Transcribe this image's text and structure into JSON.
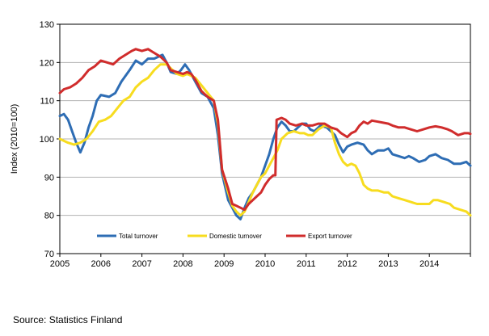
{
  "source": "Source:  Statistics Finland",
  "chart_data": {
    "type": "line",
    "title": "",
    "xlabel": "",
    "ylabel": "Index (2010=100)",
    "x_ticks": [
      "2005",
      "2006",
      "2007",
      "2008",
      "2009",
      "2010",
      "2011",
      "2012",
      "2013",
      "2014"
    ],
    "y_ticks": [
      "70",
      "80",
      "90",
      "100",
      "110",
      "120",
      "130"
    ],
    "xlim": [
      2005,
      2015
    ],
    "ylim": [
      70,
      130
    ],
    "grid": "horizontal",
    "legend_position": "inside-bottom-left",
    "series": [
      {
        "name": "Total turnover",
        "color": "#2e6db4",
        "points": [
          [
            2005.0,
            106
          ],
          [
            2005.1,
            106.5
          ],
          [
            2005.2,
            105
          ],
          [
            2005.3,
            102
          ],
          [
            2005.4,
            99
          ],
          [
            2005.5,
            96.5
          ],
          [
            2005.6,
            99
          ],
          [
            2005.7,
            103
          ],
          [
            2005.8,
            106
          ],
          [
            2005.9,
            110
          ],
          [
            2006.0,
            111.5
          ],
          [
            2006.2,
            111
          ],
          [
            2006.35,
            112
          ],
          [
            2006.5,
            115
          ],
          [
            2006.7,
            118
          ],
          [
            2006.85,
            120.5
          ],
          [
            2007.0,
            119.5
          ],
          [
            2007.15,
            121
          ],
          [
            2007.3,
            121
          ],
          [
            2007.5,
            122
          ],
          [
            2007.6,
            120
          ],
          [
            2007.7,
            117.5
          ],
          [
            2007.85,
            117
          ],
          [
            2007.95,
            118
          ],
          [
            2008.05,
            119.5
          ],
          [
            2008.15,
            118
          ],
          [
            2008.3,
            115
          ],
          [
            2008.45,
            112
          ],
          [
            2008.6,
            111
          ],
          [
            2008.75,
            108
          ],
          [
            2008.85,
            101
          ],
          [
            2008.95,
            91
          ],
          [
            2009.1,
            84
          ],
          [
            2009.2,
            82
          ],
          [
            2009.3,
            80
          ],
          [
            2009.4,
            79
          ],
          [
            2009.5,
            82
          ],
          [
            2009.6,
            84.5
          ],
          [
            2009.7,
            86
          ],
          [
            2009.8,
            88
          ],
          [
            2009.9,
            90
          ],
          [
            2010.0,
            93
          ],
          [
            2010.1,
            96
          ],
          [
            2010.2,
            100
          ],
          [
            2010.3,
            103
          ],
          [
            2010.4,
            104.5
          ],
          [
            2010.5,
            103.5
          ],
          [
            2010.6,
            102
          ],
          [
            2010.7,
            102
          ],
          [
            2010.8,
            103
          ],
          [
            2010.9,
            104
          ],
          [
            2011.0,
            104
          ],
          [
            2011.1,
            102.5
          ],
          [
            2011.2,
            102
          ],
          [
            2011.35,
            103.5
          ],
          [
            2011.5,
            103
          ],
          [
            2011.6,
            102
          ],
          [
            2011.7,
            101
          ],
          [
            2011.8,
            98.5
          ],
          [
            2011.9,
            96.5
          ],
          [
            2012.0,
            98
          ],
          [
            2012.1,
            98.5
          ],
          [
            2012.25,
            99
          ],
          [
            2012.4,
            98.5
          ],
          [
            2012.5,
            97
          ],
          [
            2012.6,
            96
          ],
          [
            2012.75,
            97
          ],
          [
            2012.9,
            97
          ],
          [
            2013.0,
            97.5
          ],
          [
            2013.1,
            96
          ],
          [
            2013.25,
            95.5
          ],
          [
            2013.4,
            95
          ],
          [
            2013.5,
            95.5
          ],
          [
            2013.6,
            95
          ],
          [
            2013.75,
            94
          ],
          [
            2013.9,
            94.5
          ],
          [
            2014.0,
            95.5
          ],
          [
            2014.15,
            96
          ],
          [
            2014.3,
            95
          ],
          [
            2014.45,
            94.5
          ],
          [
            2014.6,
            93.5
          ],
          [
            2014.75,
            93.5
          ],
          [
            2014.9,
            94
          ],
          [
            2015.0,
            93
          ]
        ]
      },
      {
        "name": "Domestic turnover",
        "color": "#f7dc1f",
        "points": [
          [
            2005.0,
            100
          ],
          [
            2005.1,
            99.5
          ],
          [
            2005.2,
            99
          ],
          [
            2005.35,
            98.5
          ],
          [
            2005.5,
            99
          ],
          [
            2005.65,
            100
          ],
          [
            2005.8,
            102
          ],
          [
            2005.95,
            104.5
          ],
          [
            2006.1,
            105
          ],
          [
            2006.25,
            106
          ],
          [
            2006.4,
            108
          ],
          [
            2006.55,
            110
          ],
          [
            2006.7,
            111
          ],
          [
            2006.85,
            113.5
          ],
          [
            2007.0,
            115
          ],
          [
            2007.15,
            116
          ],
          [
            2007.3,
            118
          ],
          [
            2007.45,
            119.5
          ],
          [
            2007.6,
            119.5
          ],
          [
            2007.75,
            118
          ],
          [
            2007.85,
            117
          ],
          [
            2008.0,
            116.5
          ],
          [
            2008.1,
            117
          ],
          [
            2008.2,
            116.5
          ],
          [
            2008.3,
            116
          ],
          [
            2008.45,
            114
          ],
          [
            2008.6,
            112
          ],
          [
            2008.75,
            110
          ],
          [
            2008.85,
            104
          ],
          [
            2008.95,
            92
          ],
          [
            2009.1,
            86
          ],
          [
            2009.2,
            82.5
          ],
          [
            2009.3,
            81
          ],
          [
            2009.4,
            80
          ],
          [
            2009.5,
            81
          ],
          [
            2009.6,
            83.5
          ],
          [
            2009.7,
            86
          ],
          [
            2009.8,
            88
          ],
          [
            2009.9,
            90
          ],
          [
            2010.0,
            91
          ],
          [
            2010.1,
            93
          ],
          [
            2010.2,
            95
          ],
          [
            2010.3,
            97
          ],
          [
            2010.4,
            100
          ],
          [
            2010.55,
            101.5
          ],
          [
            2010.7,
            102
          ],
          [
            2010.85,
            101.5
          ],
          [
            2010.95,
            101.5
          ],
          [
            2011.05,
            101
          ],
          [
            2011.15,
            101
          ],
          [
            2011.3,
            102.5
          ],
          [
            2011.45,
            103.5
          ],
          [
            2011.6,
            103
          ],
          [
            2011.7,
            99
          ],
          [
            2011.8,
            96
          ],
          [
            2011.9,
            94
          ],
          [
            2012.0,
            93
          ],
          [
            2012.1,
            93.5
          ],
          [
            2012.2,
            93
          ],
          [
            2012.3,
            91
          ],
          [
            2012.4,
            88
          ],
          [
            2012.5,
            87
          ],
          [
            2012.6,
            86.5
          ],
          [
            2012.75,
            86.5
          ],
          [
            2012.9,
            86
          ],
          [
            2013.0,
            86
          ],
          [
            2013.1,
            85
          ],
          [
            2013.25,
            84.5
          ],
          [
            2013.4,
            84
          ],
          [
            2013.55,
            83.5
          ],
          [
            2013.7,
            83
          ],
          [
            2013.85,
            83
          ],
          [
            2014.0,
            83
          ],
          [
            2014.1,
            84
          ],
          [
            2014.2,
            84
          ],
          [
            2014.35,
            83.5
          ],
          [
            2014.5,
            83
          ],
          [
            2014.6,
            82
          ],
          [
            2014.75,
            81.5
          ],
          [
            2014.9,
            81
          ],
          [
            2015.0,
            80
          ]
        ]
      },
      {
        "name": "Export turnover",
        "color": "#d02c2c",
        "points": [
          [
            2005.0,
            112
          ],
          [
            2005.1,
            113
          ],
          [
            2005.25,
            113.5
          ],
          [
            2005.4,
            114.5
          ],
          [
            2005.55,
            116
          ],
          [
            2005.7,
            118
          ],
          [
            2005.85,
            119
          ],
          [
            2006.0,
            120.5
          ],
          [
            2006.15,
            120
          ],
          [
            2006.3,
            119.5
          ],
          [
            2006.45,
            121
          ],
          [
            2006.6,
            122
          ],
          [
            2006.75,
            123
          ],
          [
            2006.85,
            123.5
          ],
          [
            2007.0,
            123
          ],
          [
            2007.15,
            123.5
          ],
          [
            2007.3,
            122.5
          ],
          [
            2007.45,
            121.5
          ],
          [
            2007.6,
            120
          ],
          [
            2007.7,
            118
          ],
          [
            2007.85,
            117.5
          ],
          [
            2008.0,
            117
          ],
          [
            2008.1,
            117.5
          ],
          [
            2008.2,
            117
          ],
          [
            2008.3,
            115.5
          ],
          [
            2008.45,
            112.5
          ],
          [
            2008.6,
            111
          ],
          [
            2008.75,
            110
          ],
          [
            2008.85,
            105
          ],
          [
            2008.95,
            92
          ],
          [
            2009.1,
            87
          ],
          [
            2009.2,
            83
          ],
          [
            2009.3,
            82.5
          ],
          [
            2009.4,
            82
          ],
          [
            2009.5,
            81.5
          ],
          [
            2009.6,
            83
          ],
          [
            2009.7,
            84
          ],
          [
            2009.8,
            85
          ],
          [
            2009.9,
            86
          ],
          [
            2010.0,
            88
          ],
          [
            2010.1,
            89.5
          ],
          [
            2010.2,
            90.5
          ],
          [
            2010.25,
            90.5
          ],
          [
            2010.28,
            105
          ],
          [
            2010.4,
            105.5
          ],
          [
            2010.5,
            105
          ],
          [
            2010.6,
            104
          ],
          [
            2010.75,
            103.5
          ],
          [
            2010.9,
            104
          ],
          [
            2011.0,
            103.5
          ],
          [
            2011.15,
            103.5
          ],
          [
            2011.3,
            104
          ],
          [
            2011.45,
            104
          ],
          [
            2011.6,
            103
          ],
          [
            2011.75,
            102.5
          ],
          [
            2011.85,
            101.5
          ],
          [
            2012.0,
            100.5
          ],
          [
            2012.1,
            101.5
          ],
          [
            2012.2,
            102
          ],
          [
            2012.3,
            103.5
          ],
          [
            2012.4,
            104.5
          ],
          [
            2012.5,
            104
          ],
          [
            2012.6,
            104.8
          ],
          [
            2012.75,
            104.5
          ],
          [
            2012.9,
            104.2
          ],
          [
            2013.0,
            104
          ],
          [
            2013.1,
            103.5
          ],
          [
            2013.25,
            103
          ],
          [
            2013.4,
            103
          ],
          [
            2013.55,
            102.5
          ],
          [
            2013.7,
            102
          ],
          [
            2013.85,
            102.5
          ],
          [
            2014.0,
            103
          ],
          [
            2014.15,
            103.3
          ],
          [
            2014.3,
            103
          ],
          [
            2014.45,
            102.5
          ],
          [
            2014.55,
            102
          ],
          [
            2014.7,
            101
          ],
          [
            2014.85,
            101.5
          ],
          [
            2014.95,
            101.5
          ],
          [
            2015.0,
            101.3
          ]
        ]
      }
    ]
  }
}
